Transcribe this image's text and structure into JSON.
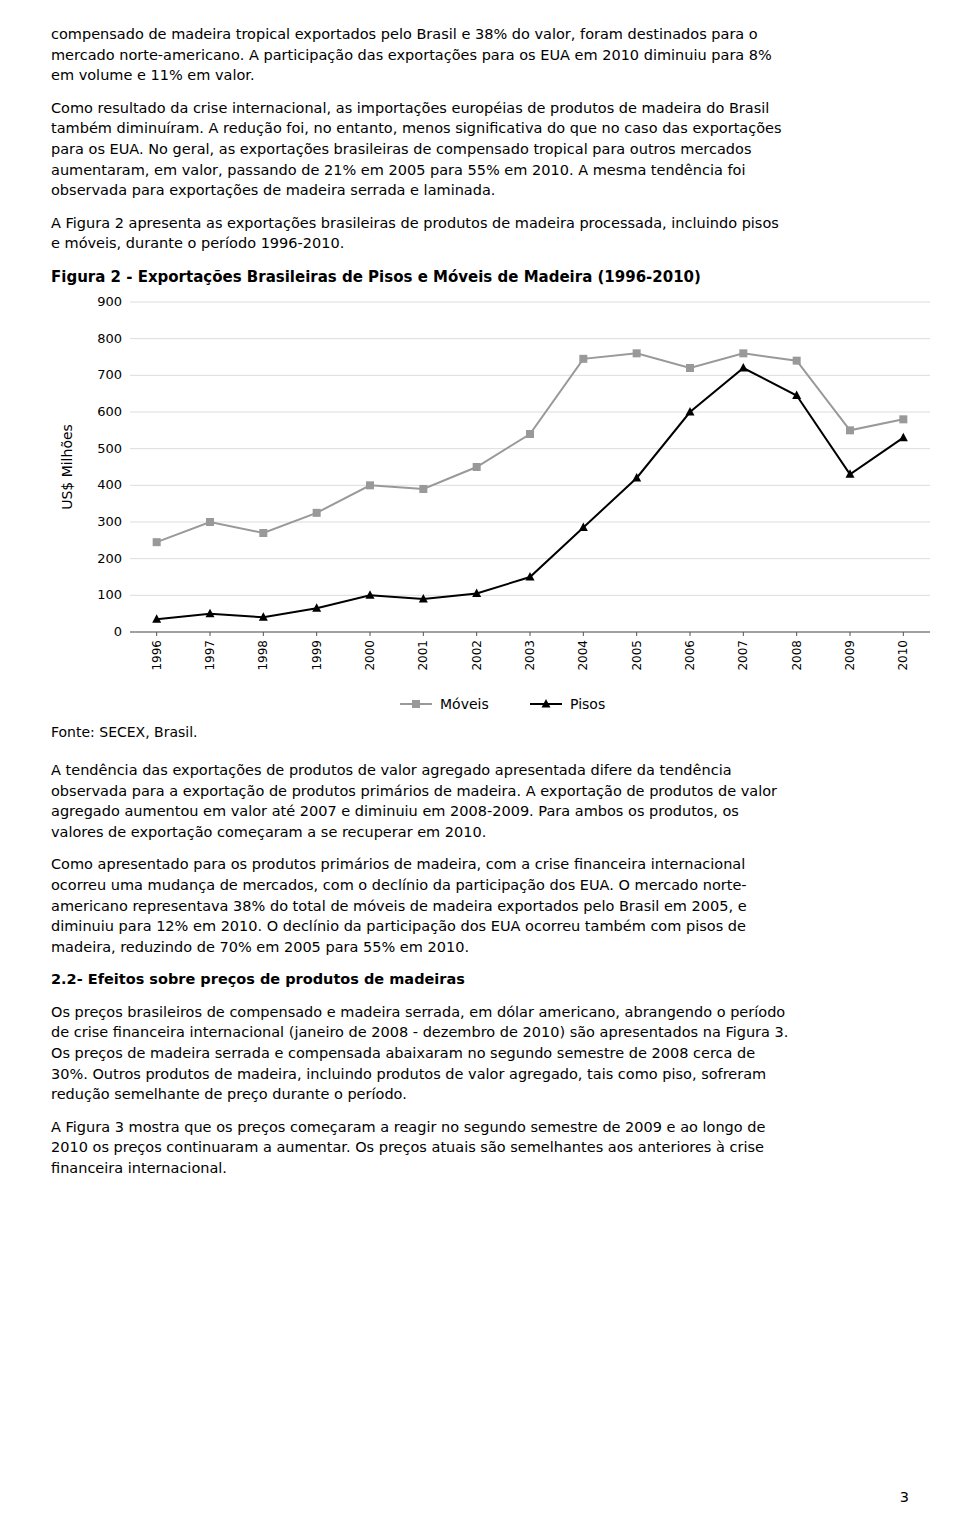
{
  "paragraphs_before": [
    "compensado de madeira tropical exportados pelo Brasil e 38% do valor, foram destinados para o\nmercado norte-americano. A participação das exportações para os EUA em 2010 diminuiu para 8%\nem volume e 11% em valor.",
    "Como resultado da crise internacional, as importações européias de produtos de madeira do Brasil\ntambém diminuíram. A redução foi, no entanto, menos significativa do que no caso das exportações\npara os EUA. No geral, as exportações brasileiras de compensado tropical para outros mercados\naumentaram, em valor, passando de 21% em 2005 para 55% em 2010. A mesma tendência foi\nobservada para exportações de madeira serrada e laminada.",
    "A Figura 2 apresenta as exportações brasileiras de produtos de madeira processada, incluindo pisos\ne móveis, durante o período 1996-2010."
  ],
  "chart_data": {
    "type": "line",
    "title": "Figura 2 - Exportações Brasileiras de Pisos e Móveis de Madeira (1996-2010)",
    "y_label": "US$ Milhões",
    "x": [
      1996,
      1997,
      1998,
      1999,
      2000,
      2001,
      2002,
      2003,
      2004,
      2005,
      2006,
      2007,
      2008,
      2009,
      2010
    ],
    "series": [
      {
        "name": "Móveis",
        "color": "#999999",
        "marker": "square",
        "line_style": "solid",
        "values": [
          245,
          300,
          270,
          325,
          400,
          390,
          450,
          540,
          745,
          760,
          720,
          760,
          740,
          550,
          580
        ]
      },
      {
        "name": "Pisos",
        "color": "#000000",
        "marker": "triangle",
        "line_style": "solid",
        "values": [
          35,
          50,
          40,
          65,
          100,
          90,
          105,
          150,
          285,
          420,
          600,
          720,
          645,
          430,
          530
        ]
      }
    ],
    "xlim": [
      1995.5,
      2010.5
    ],
    "xticks": [
      1996,
      1997,
      1998,
      1999,
      2000,
      2001,
      2002,
      2003,
      2004,
      2005,
      2006,
      2007,
      2008,
      2009,
      2010
    ],
    "ylim": [
      0,
      900
    ],
    "yticks": [
      0,
      100,
      200,
      300,
      400,
      500,
      600,
      700,
      800,
      900
    ],
    "grid": true,
    "legend": "bottom",
    "annotations": [
      "Fonte: SECEX, Brasil."
    ]
  },
  "paragraphs_after": [
    {
      "kind": "paragraph",
      "text": "A tendência das exportações de produtos de valor agregado apresentada difere da tendência\nobservada para a exportação de produtos primários de madeira. A exportação de produtos de valor\nagregado aumentou em valor até 2007 e diminuiu em 2008-2009. Para ambos os produtos, os\nvalores de exportação começaram a se recuperar em 2010."
    },
    {
      "kind": "paragraph",
      "text": "Como apresentado para os produtos primários de madeira, com a crise financeira internacional\nocorreu uma mudança de mercados, com o declínio da participação dos EUA. O mercado norte-\namericano representava 38% do total de móveis de madeira exportados pelo Brasil em 2005, e\ndiminuiu para 12% em 2010. O declínio da participação dos EUA ocorreu também com pisos de\nmadeira, reduzindo de 70% em 2005 para 55% em 2010."
    },
    {
      "kind": "heading",
      "text": "2.2- Efeitos sobre preços de produtos de madeiras"
    },
    {
      "kind": "paragraph",
      "text": "Os preços brasileiros de compensado e madeira serrada, em dólar americano, abrangendo o período\nde crise financeira internacional (janeiro de 2008 - dezembro de 2010) são apresentados na Figura 3.\nOs preços de madeira serrada e compensada abaixaram no segundo semestre de 2008 cerca de\n30%. Outros produtos de madeira, incluindo produtos de valor agregado, tais como piso, sofreram\nredução semelhante de preço durante o período."
    },
    {
      "kind": "paragraph",
      "text": "A Figura 3 mostra que os preços começaram a reagir no segundo semestre de 2009 e ao longo de\n2010 os preços continuaram a aumentar. Os preços atuais são semelhantes aos anteriores à crise\nfinanceira internacional."
    }
  ],
  "page_number": "3"
}
